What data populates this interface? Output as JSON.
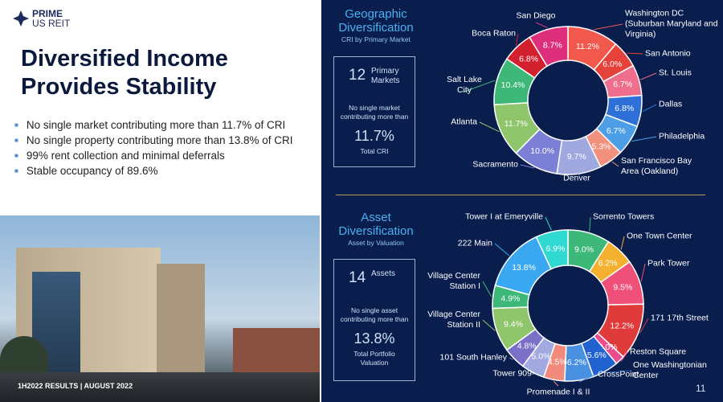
{
  "logo": {
    "line1": "PRIME",
    "line2": "US REIT"
  },
  "title": "Diversified Income Provides Stability",
  "bullets": [
    "No single market contributing more than 11.7% of CRI",
    "No single property contributing more than 13.8% of CRI",
    "99% rent collection and minimal deferrals",
    "Stable occupancy of 89.6%"
  ],
  "footer": "1H2022 RESULTS | AUGUST 2022",
  "page_number": "11",
  "chart_data": [
    {
      "type": "pie",
      "donut": true,
      "title": "Geographic Diversification",
      "subtitle": "CRI by Primary Market",
      "categories": [
        "Washington DC (Suburban Maryland and Virginia)",
        "San Antonio",
        "St. Louis",
        "Dallas",
        "Philadelphia",
        "San Francisco Bay Area (Oakland)",
        "Denver",
        "Sacramento",
        "Atlanta",
        "Salt Lake City",
        "Boca Raton",
        "San Diego"
      ],
      "values": [
        11.2,
        6.0,
        6.7,
        6.8,
        6.7,
        5.3,
        9.7,
        10.0,
        11.7,
        10.4,
        6.8,
        8.7
      ],
      "value_labels": [
        "11.2%",
        "6.0%",
        "6.7%",
        "6.8%",
        "6.7%",
        "5.3%",
        "9.7%",
        "10.0%",
        "11.7%",
        "10.4%",
        "6.8%",
        "8.7%"
      ],
      "colors": [
        "#f2584c",
        "#e4423a",
        "#ef6e8e",
        "#2f6fd8",
        "#4c9fe6",
        "#f1907c",
        "#a0a8e0",
        "#7b80d6",
        "#8fc66b",
        "#3db879",
        "#d2202f",
        "#de2f7c"
      ],
      "summary": {
        "count": "12",
        "count_label": "Primary Markets",
        "note": "No single market contributing more than",
        "max": "11.7%",
        "max_label": "Total CRI"
      }
    },
    {
      "type": "pie",
      "donut": true,
      "title": "Asset Diversification",
      "subtitle": "Asset by Valuation",
      "categories": [
        "Sorrento Towers",
        "One Town Center",
        "Park Tower",
        "171 17th Street",
        "Reston Square",
        "One Washingtonian Center",
        "CrossPoint",
        "Promenade I & II",
        "Tower 909",
        "101 South Hanley",
        "Village Center Station II",
        "Village Center Station I",
        "222 Main",
        "Tower I at Emeryville"
      ],
      "values": [
        9.0,
        6.2,
        9.5,
        12.2,
        2.0,
        5.6,
        6.2,
        4.5,
        5.0,
        4.8,
        9.4,
        4.9,
        13.8,
        6.9
      ],
      "value_labels": [
        "9.0%",
        "6.2%",
        "9.5%",
        "12.2%",
        "2.0%",
        "5.6%",
        "6.2%",
        "4.5%",
        "5.0%",
        "4.8%",
        "9.4%",
        "4.9%",
        "13.8%",
        "6.9%"
      ],
      "colors": [
        "#3db879",
        "#f4b12f",
        "#ef507a",
        "#e03b3b",
        "#e94b8c",
        "#2161d0",
        "#4a90e0",
        "#f18a7b",
        "#a2a9e0",
        "#7a70c8",
        "#8fc66b",
        "#3db879",
        "#3aa8f0",
        "#2fd8d0"
      ],
      "summary": {
        "count": "14",
        "count_label": "Assets",
        "note": "No single asset contributing more than",
        "max": "13.8%",
        "max_label": "Total Portfolio Valuation"
      }
    }
  ]
}
